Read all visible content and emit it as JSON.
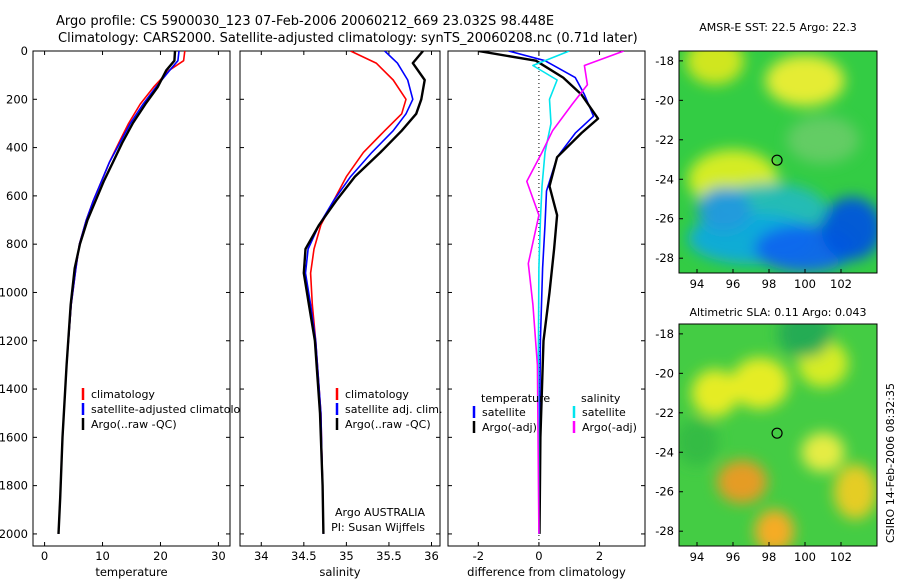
{
  "header": {
    "line1": "Argo profile: CS 5900030_123 07-Feb-2006 20060212_669 23.032S 98.448E",
    "line2": "Climatology: CARS2000. Satellite-adjusted climatology: synTS_20060208.nc (0.71d later)"
  },
  "colors": {
    "climatology": "#ff0000",
    "satellite": "#0000ff",
    "argo": "#000000",
    "argo_salinity_adj": "#ff00ff",
    "satellite_salinity": "#00e5ee",
    "frame": "#000000"
  },
  "chart_data": [
    {
      "type": "line",
      "id": "temperature",
      "xlabel": "temperature",
      "ylabel": "",
      "xlim": [
        -2,
        32
      ],
      "ylim": [
        2050,
        0
      ],
      "xticks": [
        0,
        10,
        20,
        30
      ],
      "yticks": [
        0,
        200,
        400,
        600,
        800,
        1000,
        1200,
        1400,
        1600,
        1800,
        2000
      ],
      "legend": [
        "climatology",
        "satellite-adjusted climatology",
        "Argo(..raw -QC)"
      ],
      "series": [
        {
          "name": "climatology",
          "color": "#ff0000",
          "x": [
            24.2,
            24.0,
            21.5,
            18.8,
            16.5,
            14.5,
            12.8,
            11.2,
            9.8,
            8.4,
            7.2,
            6.0,
            5.4,
            4.6,
            3.8,
            3.1,
            2.7,
            2.4
          ],
          "y": [
            0,
            40,
            80,
            150,
            220,
            300,
            380,
            460,
            540,
            620,
            700,
            800,
            900,
            1050,
            1300,
            1600,
            1850,
            2000
          ]
        },
        {
          "name": "satellite-adjusted climatology",
          "color": "#0000ff",
          "x": [
            23.2,
            23.0,
            21.6,
            19.2,
            17.0,
            14.8,
            13.0,
            11.2,
            9.8,
            8.4,
            7.2,
            6.0,
            5.4,
            4.6,
            3.8,
            3.1,
            2.7,
            2.4
          ],
          "y": [
            0,
            40,
            80,
            150,
            220,
            300,
            380,
            460,
            540,
            620,
            700,
            800,
            900,
            1050,
            1300,
            1600,
            1850,
            2000
          ]
        },
        {
          "name": "Argo(..raw -QC)",
          "color": "#000000",
          "x": [
            22.5,
            22.4,
            21.0,
            19.5,
            17.4,
            15.2,
            13.4,
            11.8,
            10.2,
            8.8,
            7.4,
            6.1,
            5.2,
            4.5,
            3.8,
            3.1,
            2.7,
            2.4
          ],
          "y": [
            0,
            40,
            80,
            150,
            220,
            300,
            380,
            460,
            540,
            620,
            700,
            800,
            900,
            1050,
            1300,
            1600,
            1850,
            2000
          ]
        }
      ]
    },
    {
      "type": "line",
      "id": "salinity",
      "xlabel": "salinity",
      "xlim": [
        33.75,
        36.1
      ],
      "ylim": [
        2050,
        0
      ],
      "xticks": [
        34,
        34.5,
        35,
        35.5,
        36
      ],
      "legend": [
        "climatology",
        "satellite adj. clim.",
        "Argo(..raw -QC)"
      ],
      "annotation": [
        "Argo AUSTRALIA",
        "PI: Susan Wijffels"
      ],
      "series": [
        {
          "name": "climatology",
          "color": "#ff0000",
          "x": [
            35.05,
            35.35,
            35.55,
            35.7,
            35.65,
            35.45,
            35.2,
            35.0,
            34.85,
            34.7,
            34.62,
            34.58,
            34.6,
            34.64,
            34.7,
            34.72,
            34.73
          ],
          "y": [
            0,
            50,
            120,
            200,
            260,
            330,
            420,
            520,
            620,
            720,
            820,
            920,
            1050,
            1200,
            1500,
            1800,
            2000
          ]
        },
        {
          "name": "satellite adj. clim.",
          "color": "#0000ff",
          "x": [
            35.45,
            35.6,
            35.72,
            35.78,
            35.7,
            35.55,
            35.3,
            35.05,
            34.85,
            34.68,
            34.55,
            34.52,
            34.58,
            34.64,
            34.7,
            34.72,
            34.73
          ],
          "y": [
            0,
            50,
            120,
            200,
            260,
            330,
            420,
            520,
            620,
            720,
            820,
            920,
            1050,
            1200,
            1500,
            1800,
            2000
          ]
        },
        {
          "name": "Argo(..raw -QC)",
          "color": "#000000",
          "x": [
            35.9,
            35.78,
            35.92,
            35.88,
            35.82,
            35.65,
            35.4,
            35.1,
            34.88,
            34.68,
            34.52,
            34.5,
            34.56,
            34.63,
            34.69,
            34.72,
            34.73
          ],
          "y": [
            0,
            50,
            120,
            200,
            260,
            330,
            420,
            520,
            620,
            720,
            820,
            920,
            1050,
            1200,
            1500,
            1800,
            2000
          ]
        }
      ]
    },
    {
      "type": "line",
      "id": "difference",
      "xlabel": "difference from climatology",
      "xlim": [
        -3,
        3.5
      ],
      "ylim": [
        2050,
        0
      ],
      "xticks": [
        -2,
        0,
        2
      ],
      "zero_line": true,
      "legend_left_title": "temperature",
      "legend_right_title": "salinity",
      "legend": [
        "satellite",
        "Argo(-adj)",
        "satellite",
        "Argo(-adj)"
      ],
      "series": [
        {
          "name": "temperature satellite",
          "color": "#0000ff",
          "x": [
            -1.0,
            0.2,
            1.2,
            1.5,
            1.8,
            1.2,
            0.6,
            0.25,
            0.2,
            0.12,
            0.05,
            0.02,
            0.02
          ],
          "y": [
            0,
            40,
            110,
            180,
            270,
            340,
            440,
            580,
            720,
            900,
            1200,
            1600,
            2000
          ]
        },
        {
          "name": "temperature Argo(-adj)",
          "color": "#000000",
          "x": [
            -2.0,
            -0.1,
            0.8,
            1.4,
            1.95,
            1.4,
            0.6,
            0.35,
            0.6,
            0.5,
            0.35,
            0.15,
            0.05,
            0.02
          ],
          "y": [
            0,
            40,
            110,
            180,
            280,
            340,
            440,
            560,
            680,
            820,
            1000,
            1200,
            1600,
            2000
          ]
        },
        {
          "name": "salinity satellite",
          "color": "#00e5ee",
          "x": [
            1.0,
            -0.2,
            0.6,
            0.35,
            0.4,
            0.2,
            0.1,
            0.05,
            0.0,
            -0.02,
            0.0
          ],
          "y": [
            0,
            60,
            120,
            200,
            300,
            420,
            560,
            700,
            900,
            1300,
            2000
          ]
        },
        {
          "name": "salinity Argo(-adj)",
          "color": "#ff00ff",
          "x": [
            2.8,
            1.5,
            1.6,
            1.1,
            0.45,
            0.1,
            -0.4,
            0.0,
            -0.35,
            -0.2,
            -0.05,
            0.0
          ],
          "y": [
            0,
            60,
            140,
            220,
            330,
            420,
            540,
            680,
            880,
            1050,
            1300,
            2000
          ]
        }
      ]
    }
  ],
  "maps": [
    {
      "title": "AMSR-E SST: 22.5  Argo: 22.3",
      "lon_ticks": [
        94,
        96,
        98,
        100,
        102
      ],
      "lat_ticks": [
        -18,
        -20,
        -22,
        -24,
        -26,
        -28
      ],
      "lon_range": [
        93,
        104
      ],
      "lat_range": [
        -17.5,
        -28.75
      ],
      "marker": {
        "lon": 98.448,
        "lat": -23.032
      },
      "palette": "blue-green-yellow"
    },
    {
      "title": "Altimetric SLA: 0.11  Argo: 0.043",
      "lon_ticks": [
        94,
        96,
        98,
        100,
        102
      ],
      "lat_ticks": [
        -18,
        -20,
        -22,
        -24,
        -26,
        -28
      ],
      "lon_range": [
        93,
        104
      ],
      "lat_range": [
        -17.5,
        -28.75
      ],
      "marker": {
        "lon": 98.448,
        "lat": -23.032
      },
      "palette": "green-yellow"
    }
  ],
  "footer": {
    "stamp": "CSIRO 14-Feb-2006 08:32:35"
  }
}
